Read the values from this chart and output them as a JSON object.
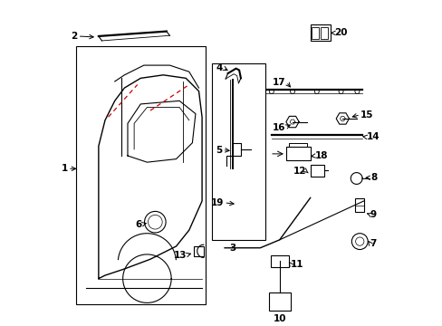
{
  "background": "#ffffff",
  "line_color": "#000000",
  "red_dash_color": "#cc0000"
}
